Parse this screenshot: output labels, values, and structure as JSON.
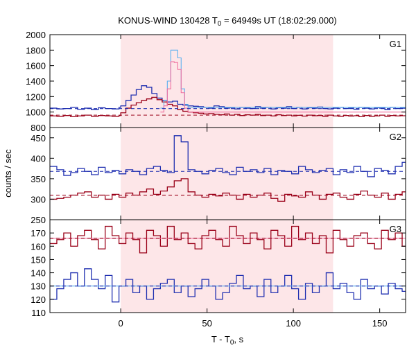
{
  "title": {
    "prefix": "KONUS-WIND 130428 T",
    "sub": "0",
    "suffix": " = 64949s UT (18:02:29.000)"
  },
  "xlabel": {
    "main": "T - T",
    "sub": "0",
    "tail": ", s"
  },
  "ylabel": "counts / sec",
  "colors": {
    "blue": "#1f2fb0",
    "blue_light": "#5ab0f0",
    "red": "#9a0018",
    "red_light": "#f070a0",
    "shade": "#fde6e8"
  },
  "chart_data": [
    {
      "type": "line",
      "panel": "G1",
      "xlim": [
        -41,
        165
      ],
      "ylim": [
        800,
        2000
      ],
      "yticks": [
        800,
        1000,
        1200,
        1400,
        1600,
        1800,
        2000
      ],
      "xticks": [
        0,
        50,
        100,
        150
      ],
      "shaded_interval": [
        0,
        123
      ],
      "background_levels": [
        {
          "series": "blue",
          "y": 1045
        },
        {
          "series": "red",
          "y": 960
        }
      ],
      "series": [
        {
          "color": "blue",
          "x": [
            -41,
            -37,
            -33,
            -29,
            -25,
            -21,
            -17,
            -13,
            -9,
            -5,
            -1,
            0,
            3,
            6,
            9,
            12,
            15,
            18,
            21,
            24,
            27,
            30,
            33,
            36,
            39,
            42,
            45,
            48,
            51,
            54,
            57,
            60,
            63,
            66,
            69,
            72,
            75,
            78,
            81,
            84,
            87,
            90,
            93,
            96,
            99,
            102,
            105,
            108,
            111,
            114,
            117,
            120,
            123,
            126,
            129,
            132,
            135,
            138,
            141,
            144,
            147,
            150,
            153,
            156,
            159,
            162
          ],
          "y": [
            1050,
            1040,
            1045,
            1060,
            1035,
            1050,
            1030,
            1055,
            1045,
            1040,
            1060,
            1080,
            1150,
            1220,
            1290,
            1340,
            1320,
            1240,
            1180,
            1150,
            1130,
            1140,
            1100,
            1090,
            1080,
            1075,
            1070,
            1060,
            1050,
            1080,
            1070,
            1050,
            1055,
            1040,
            1060,
            1050,
            1045,
            1070,
            1050,
            1060,
            1040,
            1055,
            1050,
            1070,
            1045,
            1060,
            1040,
            1055,
            1050,
            1065,
            1045,
            1040,
            1050,
            1060,
            1045,
            1050,
            1035,
            1060,
            1050,
            1040,
            1055,
            1050,
            1030,
            1060,
            1045,
            1050
          ]
        },
        {
          "color": "red",
          "x": [
            -41,
            -37,
            -33,
            -29,
            -25,
            -21,
            -17,
            -13,
            -9,
            -5,
            -1,
            0,
            3,
            6,
            9,
            12,
            15,
            18,
            21,
            24,
            27,
            30,
            33,
            36,
            39,
            42,
            45,
            48,
            51,
            54,
            57,
            60,
            63,
            66,
            69,
            72,
            75,
            78,
            81,
            84,
            87,
            90,
            93,
            96,
            99,
            102,
            105,
            108,
            111,
            114,
            117,
            120,
            123,
            126,
            129,
            132,
            135,
            138,
            141,
            144,
            147,
            150,
            153,
            156,
            159,
            162
          ],
          "y": [
            950,
            945,
            955,
            940,
            950,
            960,
            945,
            955,
            950,
            945,
            955,
            990,
            1050,
            1090,
            1120,
            1150,
            1170,
            1190,
            1160,
            1130,
            1100,
            1080,
            1030,
            1010,
            1000,
            990,
            985,
            975,
            980,
            970,
            965,
            975,
            960,
            970,
            955,
            965,
            960,
            970,
            955,
            960,
            950,
            965,
            955,
            960,
            950,
            958,
            948,
            960,
            952,
            955,
            945,
            960,
            950,
            945,
            955,
            948,
            952,
            940,
            955,
            945,
            950,
            960,
            945,
            955,
            950,
            952
          ]
        },
        {
          "color": "blue_light",
          "x": [
            23,
            25,
            27,
            29,
            31,
            33,
            35,
            37,
            39
          ],
          "y": [
            1050,
            1150,
            1400,
            1800,
            1800,
            1700,
            1300,
            1100,
            1060
          ]
        },
        {
          "color": "red_light",
          "x": [
            23,
            25,
            27,
            29,
            31,
            33,
            35,
            37,
            39
          ],
          "y": [
            1000,
            1080,
            1300,
            1650,
            1640,
            1550,
            1250,
            1050,
            1000
          ]
        }
      ]
    },
    {
      "type": "line",
      "panel": "G2",
      "xlim": [
        -41,
        165
      ],
      "ylim": [
        250,
        475
      ],
      "yticks": [
        250,
        300,
        350,
        400,
        450
      ],
      "xticks": [
        0,
        50,
        100,
        150
      ],
      "shaded_interval": [
        0,
        123
      ],
      "background_levels": [
        {
          "series": "blue",
          "y": 368
        },
        {
          "series": "red",
          "y": 310
        }
      ],
      "series": [
        {
          "color": "blue",
          "x": [
            -41,
            -37,
            -33,
            -29,
            -25,
            -21,
            -17,
            -13,
            -9,
            -5,
            -1,
            3,
            7,
            11,
            15,
            19,
            23,
            27,
            31,
            35,
            39,
            43,
            47,
            51,
            55,
            59,
            63,
            67,
            71,
            75,
            79,
            83,
            87,
            91,
            95,
            99,
            103,
            107,
            111,
            115,
            119,
            123,
            127,
            131,
            135,
            139,
            143,
            147,
            151,
            155,
            159,
            163
          ],
          "y": [
            380,
            372,
            358,
            365,
            375,
            368,
            360,
            378,
            365,
            370,
            362,
            372,
            368,
            360,
            375,
            380,
            370,
            365,
            455,
            440,
            372,
            368,
            362,
            370,
            375,
            365,
            360,
            378,
            368,
            372,
            365,
            375,
            360,
            370,
            368,
            362,
            380,
            372,
            365,
            370,
            375,
            360,
            372,
            365,
            380,
            368,
            355,
            375,
            370,
            362,
            380,
            390
          ]
        },
        {
          "color": "red",
          "x": [
            -41,
            -37,
            -33,
            -29,
            -25,
            -21,
            -17,
            -13,
            -9,
            -5,
            -1,
            3,
            7,
            11,
            15,
            19,
            23,
            27,
            31,
            35,
            39,
            43,
            47,
            51,
            55,
            59,
            63,
            67,
            71,
            75,
            79,
            83,
            87,
            91,
            95,
            99,
            103,
            107,
            111,
            115,
            119,
            123,
            127,
            131,
            135,
            139,
            143,
            147,
            151,
            155,
            159,
            163
          ],
          "y": [
            300,
            302,
            305,
            310,
            315,
            318,
            305,
            310,
            300,
            312,
            305,
            315,
            310,
            318,
            325,
            312,
            320,
            330,
            345,
            350,
            318,
            310,
            305,
            312,
            308,
            315,
            310,
            300,
            312,
            305,
            310,
            315,
            302,
            295,
            312,
            308,
            305,
            318,
            310,
            300,
            312,
            315,
            305,
            300,
            312,
            320,
            310,
            305,
            315,
            300,
            312,
            318
          ]
        }
      ]
    },
    {
      "type": "line",
      "panel": "G3",
      "xlim": [
        -41,
        165
      ],
      "ylim": [
        110,
        180
      ],
      "yticks": [
        110,
        120,
        130,
        140,
        150,
        160,
        170,
        180
      ],
      "xticks": [
        0,
        50,
        100,
        150
      ],
      "shaded_interval": [
        0,
        123
      ],
      "background_levels": [
        {
          "series": "blue",
          "y": 130
        },
        {
          "series": "red",
          "y": 166
        }
      ],
      "series": [
        {
          "color": "blue",
          "x": [
            -41,
            -37,
            -33,
            -29,
            -25,
            -21,
            -17,
            -13,
            -9,
            -5,
            -1,
            3,
            7,
            11,
            15,
            19,
            23,
            27,
            31,
            35,
            39,
            43,
            47,
            51,
            55,
            59,
            63,
            67,
            71,
            75,
            79,
            83,
            87,
            91,
            95,
            99,
            103,
            107,
            111,
            115,
            119,
            123,
            127,
            131,
            135,
            139,
            143,
            147,
            151,
            155,
            159,
            163
          ],
          "y": [
            120,
            128,
            135,
            140,
            130,
            143,
            135,
            128,
            138,
            118,
            130,
            135,
            125,
            130,
            120,
            128,
            132,
            135,
            125,
            130,
            122,
            128,
            135,
            130,
            120,
            125,
            132,
            138,
            128,
            130,
            122,
            135,
            125,
            130,
            138,
            128,
            120,
            132,
            125,
            130,
            140,
            128,
            132,
            125,
            120,
            135,
            128,
            130,
            124,
            132,
            128,
            126
          ]
        },
        {
          "color": "red",
          "x": [
            -41,
            -37,
            -33,
            -29,
            -25,
            -21,
            -17,
            -13,
            -9,
            -5,
            -1,
            3,
            7,
            11,
            15,
            19,
            23,
            27,
            31,
            35,
            39,
            43,
            47,
            51,
            55,
            59,
            63,
            67,
            71,
            75,
            79,
            83,
            87,
            91,
            95,
            99,
            103,
            107,
            111,
            115,
            119,
            123,
            127,
            131,
            135,
            139,
            143,
            147,
            151,
            155,
            159,
            163
          ],
          "y": [
            162,
            165,
            170,
            160,
            168,
            172,
            165,
            158,
            175,
            168,
            162,
            170,
            165,
            155,
            172,
            168,
            160,
            175,
            165,
            170,
            162,
            158,
            168,
            172,
            165,
            160,
            175,
            168,
            162,
            170,
            165,
            158,
            172,
            168,
            160,
            175,
            165,
            170,
            162,
            168,
            155,
            172,
            165,
            160,
            168,
            170,
            162,
            158,
            172,
            165,
            170,
            160
          ]
        },
        {
          "color": "red_light",
          "x": [
            -41,
            165
          ],
          "y": [
            166,
            166
          ]
        },
        {
          "color": "blue_light",
          "x": [
            -41,
            165
          ],
          "y": [
            130,
            130
          ]
        }
      ]
    }
  ]
}
